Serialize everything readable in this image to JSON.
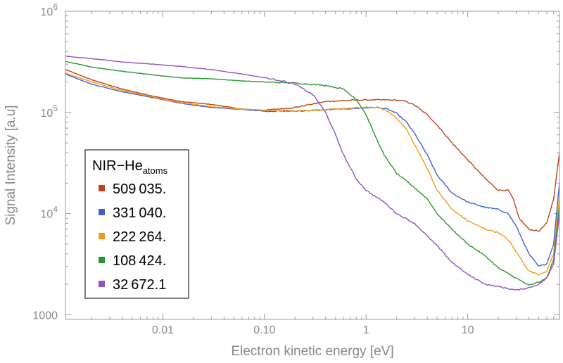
{
  "chart_data": {
    "type": "line",
    "xlabel": "Electron kinetic energy [eV]",
    "ylabel": "Signal Intensity [a.u]",
    "x_scale": "log",
    "y_scale": "log",
    "xlim": [
      0.0011,
      80
    ],
    "ylim": [
      900,
      1000000
    ],
    "x_ticks": [
      {
        "value": 0.01,
        "label": "0.01"
      },
      {
        "value": 0.1,
        "label": "0.10"
      },
      {
        "value": 1,
        "label": "1"
      },
      {
        "value": 10,
        "label": "10"
      }
    ],
    "y_ticks": [
      {
        "value": 1000,
        "label": "1000",
        "sup": ""
      },
      {
        "value": 10000,
        "label": "10",
        "sup": "4"
      },
      {
        "value": 100000,
        "label": "10",
        "sup": "5"
      },
      {
        "value": 1000000,
        "label": "10",
        "sup": "6"
      }
    ],
    "legend": {
      "title_main": "NIR−He",
      "title_sub": "atoms",
      "placement": "lower-left"
    },
    "series": [
      {
        "name": "509 035.",
        "color": "#c0431b",
        "points": [
          [
            0.0011,
            265000
          ],
          [
            0.002,
            210000
          ],
          [
            0.004,
            170000
          ],
          [
            0.008,
            145000
          ],
          [
            0.015,
            128000
          ],
          [
            0.03,
            120000
          ],
          [
            0.06,
            108000
          ],
          [
            0.1,
            105000
          ],
          [
            0.2,
            112000
          ],
          [
            0.4,
            128000
          ],
          [
            0.7,
            132000
          ],
          [
            1.0,
            133000
          ],
          [
            1.5,
            133000
          ],
          [
            2.0,
            132000
          ],
          [
            2.5,
            128000
          ],
          [
            3.0,
            118000
          ],
          [
            4.0,
            95000
          ],
          [
            5.0,
            75000
          ],
          [
            7.0,
            50000
          ],
          [
            10.0,
            34000
          ],
          [
            15.0,
            22000
          ],
          [
            20.0,
            17000
          ],
          [
            25.0,
            17000
          ],
          [
            28.0,
            14000
          ],
          [
            32.0,
            9000
          ],
          [
            40.0,
            7000
          ],
          [
            50.0,
            6700
          ],
          [
            60.0,
            8000
          ],
          [
            70.0,
            14000
          ],
          [
            80.0,
            40000
          ]
        ]
      },
      {
        "name": "331 040.",
        "color": "#3f63c8",
        "points": [
          [
            0.0011,
            240000
          ],
          [
            0.002,
            190000
          ],
          [
            0.004,
            160000
          ],
          [
            0.008,
            140000
          ],
          [
            0.015,
            123000
          ],
          [
            0.03,
            112000
          ],
          [
            0.06,
            107000
          ],
          [
            0.1,
            103000
          ],
          [
            0.2,
            103000
          ],
          [
            0.4,
            106000
          ],
          [
            0.7,
            109000
          ],
          [
            1.0,
            111000
          ],
          [
            1.3,
            112000
          ],
          [
            1.6,
            108000
          ],
          [
            2.0,
            98000
          ],
          [
            2.5,
            80000
          ],
          [
            3.0,
            62000
          ],
          [
            4.0,
            38000
          ],
          [
            5.0,
            24000
          ],
          [
            7.0,
            16000
          ],
          [
            10.0,
            13000
          ],
          [
            15.0,
            11500
          ],
          [
            20.0,
            11000
          ],
          [
            25.0,
            10000
          ],
          [
            30.0,
            7500
          ],
          [
            40.0,
            4000
          ],
          [
            50.0,
            3000
          ],
          [
            60.0,
            3200
          ],
          [
            70.0,
            5000
          ],
          [
            80.0,
            20000
          ]
        ]
      },
      {
        "name": "222 264.",
        "color": "#f49a1c",
        "points": [
          [
            0.0011,
            245000
          ],
          [
            0.002,
            200000
          ],
          [
            0.004,
            165000
          ],
          [
            0.008,
            142000
          ],
          [
            0.015,
            125000
          ],
          [
            0.03,
            114000
          ],
          [
            0.06,
            108000
          ],
          [
            0.1,
            105000
          ],
          [
            0.2,
            104000
          ],
          [
            0.4,
            106000
          ],
          [
            0.7,
            110000
          ],
          [
            1.0,
            112000
          ],
          [
            1.3,
            112000
          ],
          [
            1.6,
            104000
          ],
          [
            2.0,
            88000
          ],
          [
            2.5,
            68000
          ],
          [
            3.0,
            48000
          ],
          [
            4.0,
            28000
          ],
          [
            5.0,
            17000
          ],
          [
            7.0,
            11000
          ],
          [
            10.0,
            8500
          ],
          [
            15.0,
            7000
          ],
          [
            20.0,
            6500
          ],
          [
            25.0,
            5500
          ],
          [
            30.0,
            4200
          ],
          [
            40.0,
            2700
          ],
          [
            50.0,
            2500
          ],
          [
            60.0,
            2700
          ],
          [
            70.0,
            4000
          ],
          [
            80.0,
            15000
          ]
        ]
      },
      {
        "name": "108 424.",
        "color": "#27982e",
        "points": [
          [
            0.0011,
            320000
          ],
          [
            0.002,
            280000
          ],
          [
            0.004,
            255000
          ],
          [
            0.008,
            235000
          ],
          [
            0.015,
            220000
          ],
          [
            0.03,
            215000
          ],
          [
            0.06,
            205000
          ],
          [
            0.1,
            200000
          ],
          [
            0.2,
            195000
          ],
          [
            0.4,
            185000
          ],
          [
            0.6,
            170000
          ],
          [
            0.8,
            135000
          ],
          [
            1.0,
            95000
          ],
          [
            1.2,
            62000
          ],
          [
            1.5,
            38000
          ],
          [
            2.0,
            25000
          ],
          [
            3.0,
            18000
          ],
          [
            4.0,
            14000
          ],
          [
            5.0,
            10000
          ],
          [
            7.0,
            7000
          ],
          [
            10.0,
            5000
          ],
          [
            15.0,
            3800
          ],
          [
            20.0,
            2900
          ],
          [
            30.0,
            2300
          ],
          [
            40.0,
            1950
          ],
          [
            50.0,
            2100
          ],
          [
            60.0,
            2300
          ],
          [
            70.0,
            3500
          ],
          [
            80.0,
            12000
          ]
        ]
      },
      {
        "name": "32 672.1",
        "color": "#9153c0",
        "points": [
          [
            0.0011,
            360000
          ],
          [
            0.002,
            340000
          ],
          [
            0.004,
            315000
          ],
          [
            0.008,
            300000
          ],
          [
            0.015,
            285000
          ],
          [
            0.03,
            265000
          ],
          [
            0.06,
            240000
          ],
          [
            0.1,
            220000
          ],
          [
            0.15,
            205000
          ],
          [
            0.2,
            190000
          ],
          [
            0.3,
            150000
          ],
          [
            0.4,
            100000
          ],
          [
            0.5,
            60000
          ],
          [
            0.6,
            38000
          ],
          [
            0.8,
            22000
          ],
          [
            1.0,
            17000
          ],
          [
            1.5,
            13000
          ],
          [
            2.0,
            10000
          ],
          [
            3.0,
            8000
          ],
          [
            4.0,
            6000
          ],
          [
            5.0,
            4800
          ],
          [
            7.0,
            3300
          ],
          [
            10.0,
            2500
          ],
          [
            15.0,
            2000
          ],
          [
            20.0,
            1900
          ],
          [
            30.0,
            1750
          ],
          [
            40.0,
            1850
          ],
          [
            50.0,
            2000
          ],
          [
            60.0,
            2300
          ],
          [
            70.0,
            3200
          ],
          [
            80.0,
            10000
          ]
        ]
      }
    ]
  }
}
